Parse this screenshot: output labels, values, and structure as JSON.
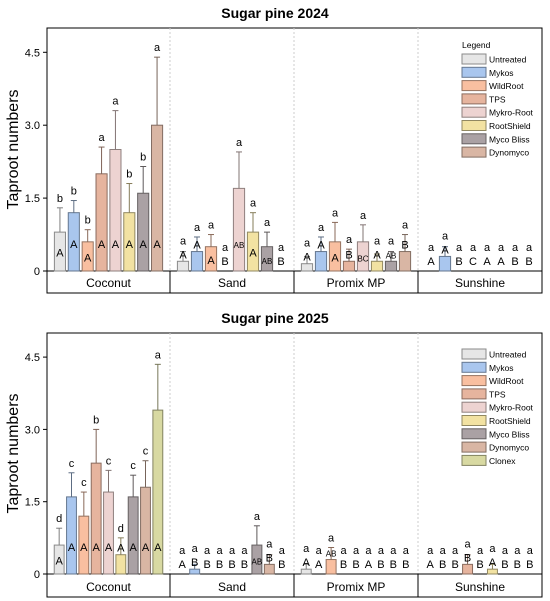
{
  "chart_data": [
    {
      "type": "bar",
      "title": "Sugar pine 2024",
      "ylabel": "Taproot numbers",
      "ylim": [
        0,
        5
      ],
      "yticks": [
        "0",
        "1.5",
        "3.0",
        "4.5"
      ],
      "yticks_values": [
        0,
        1.5,
        3.0,
        4.5
      ],
      "grid": false,
      "legend_title": "Legend",
      "legend_position": "top-right",
      "groups": [
        "Coconut",
        "Sand",
        "Promix MP",
        "Sunshine"
      ],
      "series": [
        {
          "name": "Untreated",
          "color": "#e6e6e6",
          "values": [
            0.8,
            0.2,
            0.15,
            0
          ],
          "errors": [
            0.5,
            0.2,
            0.15,
            0
          ],
          "upper_letters": [
            "b",
            "a",
            "a",
            "a"
          ],
          "lower_letters": [
            "A",
            "A",
            "A",
            "A"
          ]
        },
        {
          "name": "Mykos",
          "color": "#a9c6ee",
          "values": [
            1.2,
            0.4,
            0.4,
            0.3
          ],
          "errors": [
            0.25,
            0.3,
            0.3,
            0.2
          ],
          "upper_letters": [
            "b",
            "a",
            "a",
            "a"
          ],
          "lower_letters": [
            "A",
            "A",
            "A",
            "A"
          ]
        },
        {
          "name": "WildRoot",
          "color": "#f9bfa0",
          "values": [
            0.6,
            0.5,
            0.6,
            0
          ],
          "errors": [
            0.25,
            0.25,
            0.4,
            0
          ],
          "upper_letters": [
            "b",
            "a",
            "a",
            "a"
          ],
          "lower_letters": [
            "A",
            "A",
            "A",
            "B"
          ]
        },
        {
          "name": "TPS",
          "color": "#e6b49e",
          "values": [
            2.0,
            0,
            0.2,
            0
          ],
          "errors": [
            0.55,
            0,
            0.25,
            0
          ],
          "upper_letters": [
            "a",
            "a",
            "a",
            "a"
          ],
          "lower_letters": [
            "A",
            "B",
            "B",
            "C"
          ]
        },
        {
          "name": "Mykro-Root",
          "color": "#edd3d1",
          "values": [
            2.5,
            1.7,
            0.6,
            0
          ],
          "errors": [
            0.8,
            0.75,
            0.35,
            0
          ],
          "upper_letters": [
            "a",
            "a",
            "a",
            "a"
          ],
          "lower_letters": [
            "A",
            "AB",
            "BC",
            "A"
          ]
        },
        {
          "name": "RootShield",
          "color": "#f2e2a2",
          "values": [
            1.2,
            0.8,
            0.2,
            0
          ],
          "errors": [
            0.6,
            0.4,
            0.15,
            0
          ],
          "upper_letters": [
            "b",
            "a",
            "a",
            "a"
          ],
          "lower_letters": [
            "A",
            "A",
            "A",
            "A"
          ]
        },
        {
          "name": "Myco Bliss",
          "color": "#aaa1a4",
          "values": [
            1.6,
            0.5,
            0.2,
            0
          ],
          "errors": [
            0.55,
            0.3,
            0.2,
            0
          ],
          "upper_letters": [
            "b",
            "a",
            "a",
            "a"
          ],
          "lower_letters": [
            "A",
            "AB",
            "AB",
            "B"
          ]
        },
        {
          "name": "Dynomyco",
          "color": "#d9b6a4",
          "values": [
            3.0,
            0,
            0.4,
            0
          ],
          "errors": [
            1.4,
            0,
            0.35,
            0
          ],
          "upper_letters": [
            "a",
            "a",
            "a",
            "a"
          ],
          "lower_letters": [
            "A",
            "B",
            "B",
            "B"
          ]
        }
      ]
    },
    {
      "type": "bar",
      "title": "Sugar pine 2025",
      "ylabel": "Taproot numbers",
      "ylim": [
        0,
        5
      ],
      "yticks": [
        "0",
        "1.5",
        "3.0",
        "4.5"
      ],
      "yticks_values": [
        0,
        1.5,
        3.0,
        4.5
      ],
      "grid": false,
      "legend_title": "",
      "legend_position": "top-right",
      "groups": [
        "Coconut",
        "Sand",
        "Promix MP",
        "Sunshine"
      ],
      "series": [
        {
          "name": "Untreated",
          "color": "#e6e6e6",
          "values": [
            0.6,
            0,
            0.1,
            0
          ],
          "errors": [
            0.35,
            0,
            0.1,
            0
          ],
          "upper_letters": [
            "d",
            "a",
            "a",
            "a"
          ],
          "lower_letters": [
            "A",
            "A",
            "A",
            "A"
          ]
        },
        {
          "name": "Mykos",
          "color": "#a9c6ee",
          "values": [
            1.6,
            0.1,
            0,
            0
          ],
          "errors": [
            0.5,
            0.1,
            0,
            0
          ],
          "upper_letters": [
            "c",
            "a",
            "a",
            "a"
          ],
          "lower_letters": [
            "A",
            "B",
            "A",
            "B"
          ]
        },
        {
          "name": "WildRoot",
          "color": "#f9bfa0",
          "values": [
            1.2,
            0,
            0.3,
            0
          ],
          "errors": [
            0.5,
            0,
            0.25,
            0
          ],
          "upper_letters": [
            "c",
            "a",
            "a",
            "a"
          ],
          "lower_letters": [
            "A",
            "B",
            "AB",
            "B"
          ]
        },
        {
          "name": "TPS",
          "color": "#e6b49e",
          "values": [
            2.3,
            0,
            0,
            0.2
          ],
          "errors": [
            0.7,
            0,
            0,
            0.2
          ],
          "upper_letters": [
            "b",
            "a",
            "a",
            "a"
          ],
          "lower_letters": [
            "A",
            "B",
            "B",
            "B"
          ]
        },
        {
          "name": "Mykro-Root",
          "color": "#edd3d1",
          "values": [
            1.7,
            0,
            0,
            0
          ],
          "errors": [
            0.45,
            0,
            0,
            0
          ],
          "upper_letters": [
            "c",
            "a",
            "a",
            "a"
          ],
          "lower_letters": [
            "A",
            "B",
            "B",
            "B"
          ]
        },
        {
          "name": "RootShield",
          "color": "#f2e2a2",
          "values": [
            0.4,
            0,
            0,
            0.1
          ],
          "errors": [
            0.35,
            0,
            0,
            0.1
          ],
          "upper_letters": [
            "d",
            "a",
            "a",
            "a"
          ],
          "lower_letters": [
            "A",
            "B",
            "A",
            "A"
          ]
        },
        {
          "name": "Myco Bliss",
          "color": "#aaa1a4",
          "values": [
            1.6,
            0.6,
            0,
            0
          ],
          "errors": [
            0.45,
            0.4,
            0,
            0
          ],
          "upper_letters": [
            "c",
            "a",
            "a",
            "a"
          ],
          "lower_letters": [
            "A",
            "AB",
            "B",
            "B"
          ]
        },
        {
          "name": "Dynomyco",
          "color": "#d9b6a4",
          "values": [
            1.8,
            0.2,
            0,
            0
          ],
          "errors": [
            0.55,
            0.2,
            0,
            0
          ],
          "upper_letters": [
            "c",
            "a",
            "a",
            "a"
          ],
          "lower_letters": [
            "A",
            "B",
            "B",
            "B"
          ]
        },
        {
          "name": "Clonex",
          "color": "#d8d9a2",
          "values": [
            3.4,
            0,
            0,
            0
          ],
          "errors": [
            0.95,
            0,
            0,
            0
          ],
          "upper_letters": [
            "a",
            "a",
            "a",
            "a"
          ],
          "lower_letters": [
            "A",
            "B",
            "B",
            "B"
          ]
        }
      ]
    }
  ]
}
